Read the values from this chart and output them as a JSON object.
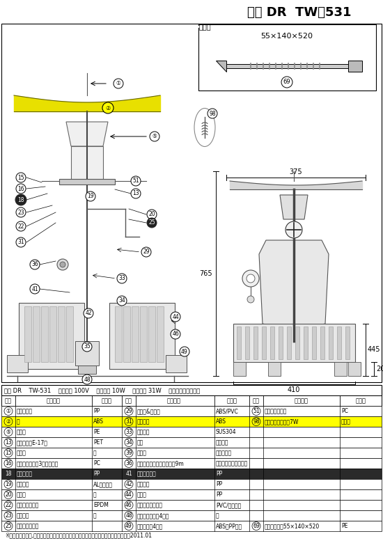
{
  "title": "吉野 DR  TW－531",
  "bg_color": "#ffffff",
  "header_text": "吉野 DR    TW-531    定格電圧 100V    定格出力 10W    消費電力 31W    タカラ工業株式会社",
  "accessory_label": "付属品",
  "accessory_size": "55×140×520",
  "table_rows": [
    [
      "①",
      "卓上ツマミ",
      "PP",
      "29",
      "ボディ&パイプ",
      "ABS/PVC",
      "51",
      "ランプホルダー",
      "PC"
    ],
    [
      "②",
      "傘",
      "ABS",
      "31",
      "水切り板",
      "ABS",
      "98",
      "電球型蛍光ランプ7W",
      "ガラス"
    ],
    [
      "⑤",
      "セード",
      "PE",
      "33",
      "シャフト",
      "SUS304",
      "",
      "",
      ""
    ],
    [
      "13",
      "ソケット（E-17）",
      "PET",
      "34",
      "ペラ",
      "ナイロン",
      "",
      "",
      ""
    ],
    [
      "15",
      "傘支え",
      "鉄",
      "39",
      "軸受け",
      "ジェラコン",
      "",
      "",
      ""
    ],
    [
      "16",
      "コンデンサー（3マイクロ）",
      "PC",
      "36",
      "防滴スイッチ付電源コード9m",
      "ビニールキャプタイヤ",
      "",
      "",
      ""
    ],
    [
      "18",
      "浸水報知器",
      "PP",
      "41",
      "苗止めバンド",
      "PP",
      "",
      "",
      ""
    ],
    [
      "19",
      "モーター",
      "AL・鉄・銅",
      "42",
      "濾過槽蓋",
      "PP",
      "",
      "",
      ""
    ],
    [
      "20",
      "ベース",
      "鉄",
      "44",
      "濾過槽",
      "PP",
      "",
      "",
      ""
    ],
    [
      "22",
      "ジョイントゴム",
      "EPDM",
      "46",
      "濾過材（ダブル）",
      "PVC/ナイロン",
      "",
      "",
      ""
    ],
    [
      "23",
      "制配線板",
      "鉄",
      "48",
      "本体支え（ネジ4本）",
      "鉄",
      "",
      "",
      ""
    ],
    [
      "25",
      "オーバーフロー",
      "",
      "49",
      "重り　（脚4ヶ）",
      "ABS・PP・鉄",
      "69",
      "サイレンサー55×140×520",
      "PE"
    ]
  ],
  "highlight_row": 1,
  "highlight_color": "#ffff00",
  "row18_bg": "#2a2a2a",
  "row18_fg": "#ffffff",
  "footer": "※お断りなく材質,形状等を変更する場合がございます。　白ヌキ・・・・非売品　　2011.01"
}
